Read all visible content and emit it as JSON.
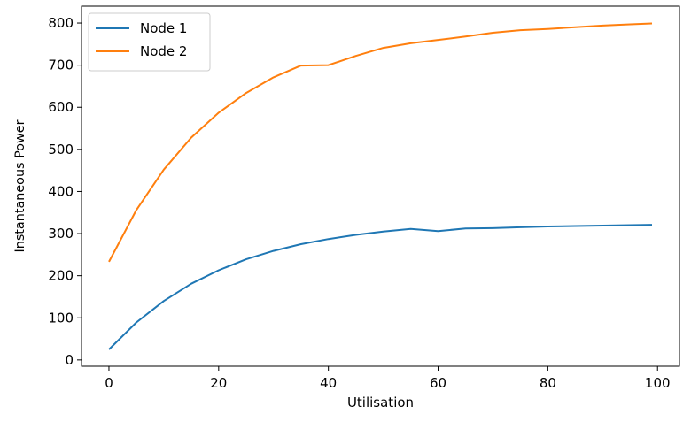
{
  "chart_data": {
    "type": "line",
    "title": "",
    "xlabel": "Utilisation",
    "ylabel": "Instantaneous Power",
    "xlim": [
      -5,
      104
    ],
    "ylim": [
      -15,
      840
    ],
    "xticks": [
      0,
      20,
      40,
      60,
      80,
      100
    ],
    "yticks": [
      0,
      100,
      200,
      300,
      400,
      500,
      600,
      700,
      800
    ],
    "grid": false,
    "legend_position": "top-left",
    "series": [
      {
        "name": "Node 1",
        "color": "#1f77b4",
        "x": [
          0,
          5,
          10,
          15,
          20,
          25,
          30,
          35,
          40,
          45,
          50,
          55,
          60,
          65,
          70,
          75,
          80,
          85,
          90,
          95,
          99
        ],
        "y": [
          25,
          89,
          140,
          181,
          213,
          239,
          259,
          275,
          287,
          297,
          305,
          311,
          306,
          312,
          313,
          315,
          317,
          318,
          319,
          320,
          321
        ]
      },
      {
        "name": "Node 2",
        "color": "#ff7f0e",
        "x": [
          0,
          5,
          10,
          15,
          20,
          25,
          30,
          35,
          40,
          45,
          50,
          55,
          60,
          65,
          70,
          75,
          80,
          85,
          90,
          95,
          99
        ],
        "y": [
          233,
          356,
          452,
          528,
          587,
          634,
          671,
          699,
          700,
          722,
          741,
          752,
          760,
          768,
          777,
          783,
          786,
          790,
          794,
          797,
          799
        ]
      }
    ]
  }
}
